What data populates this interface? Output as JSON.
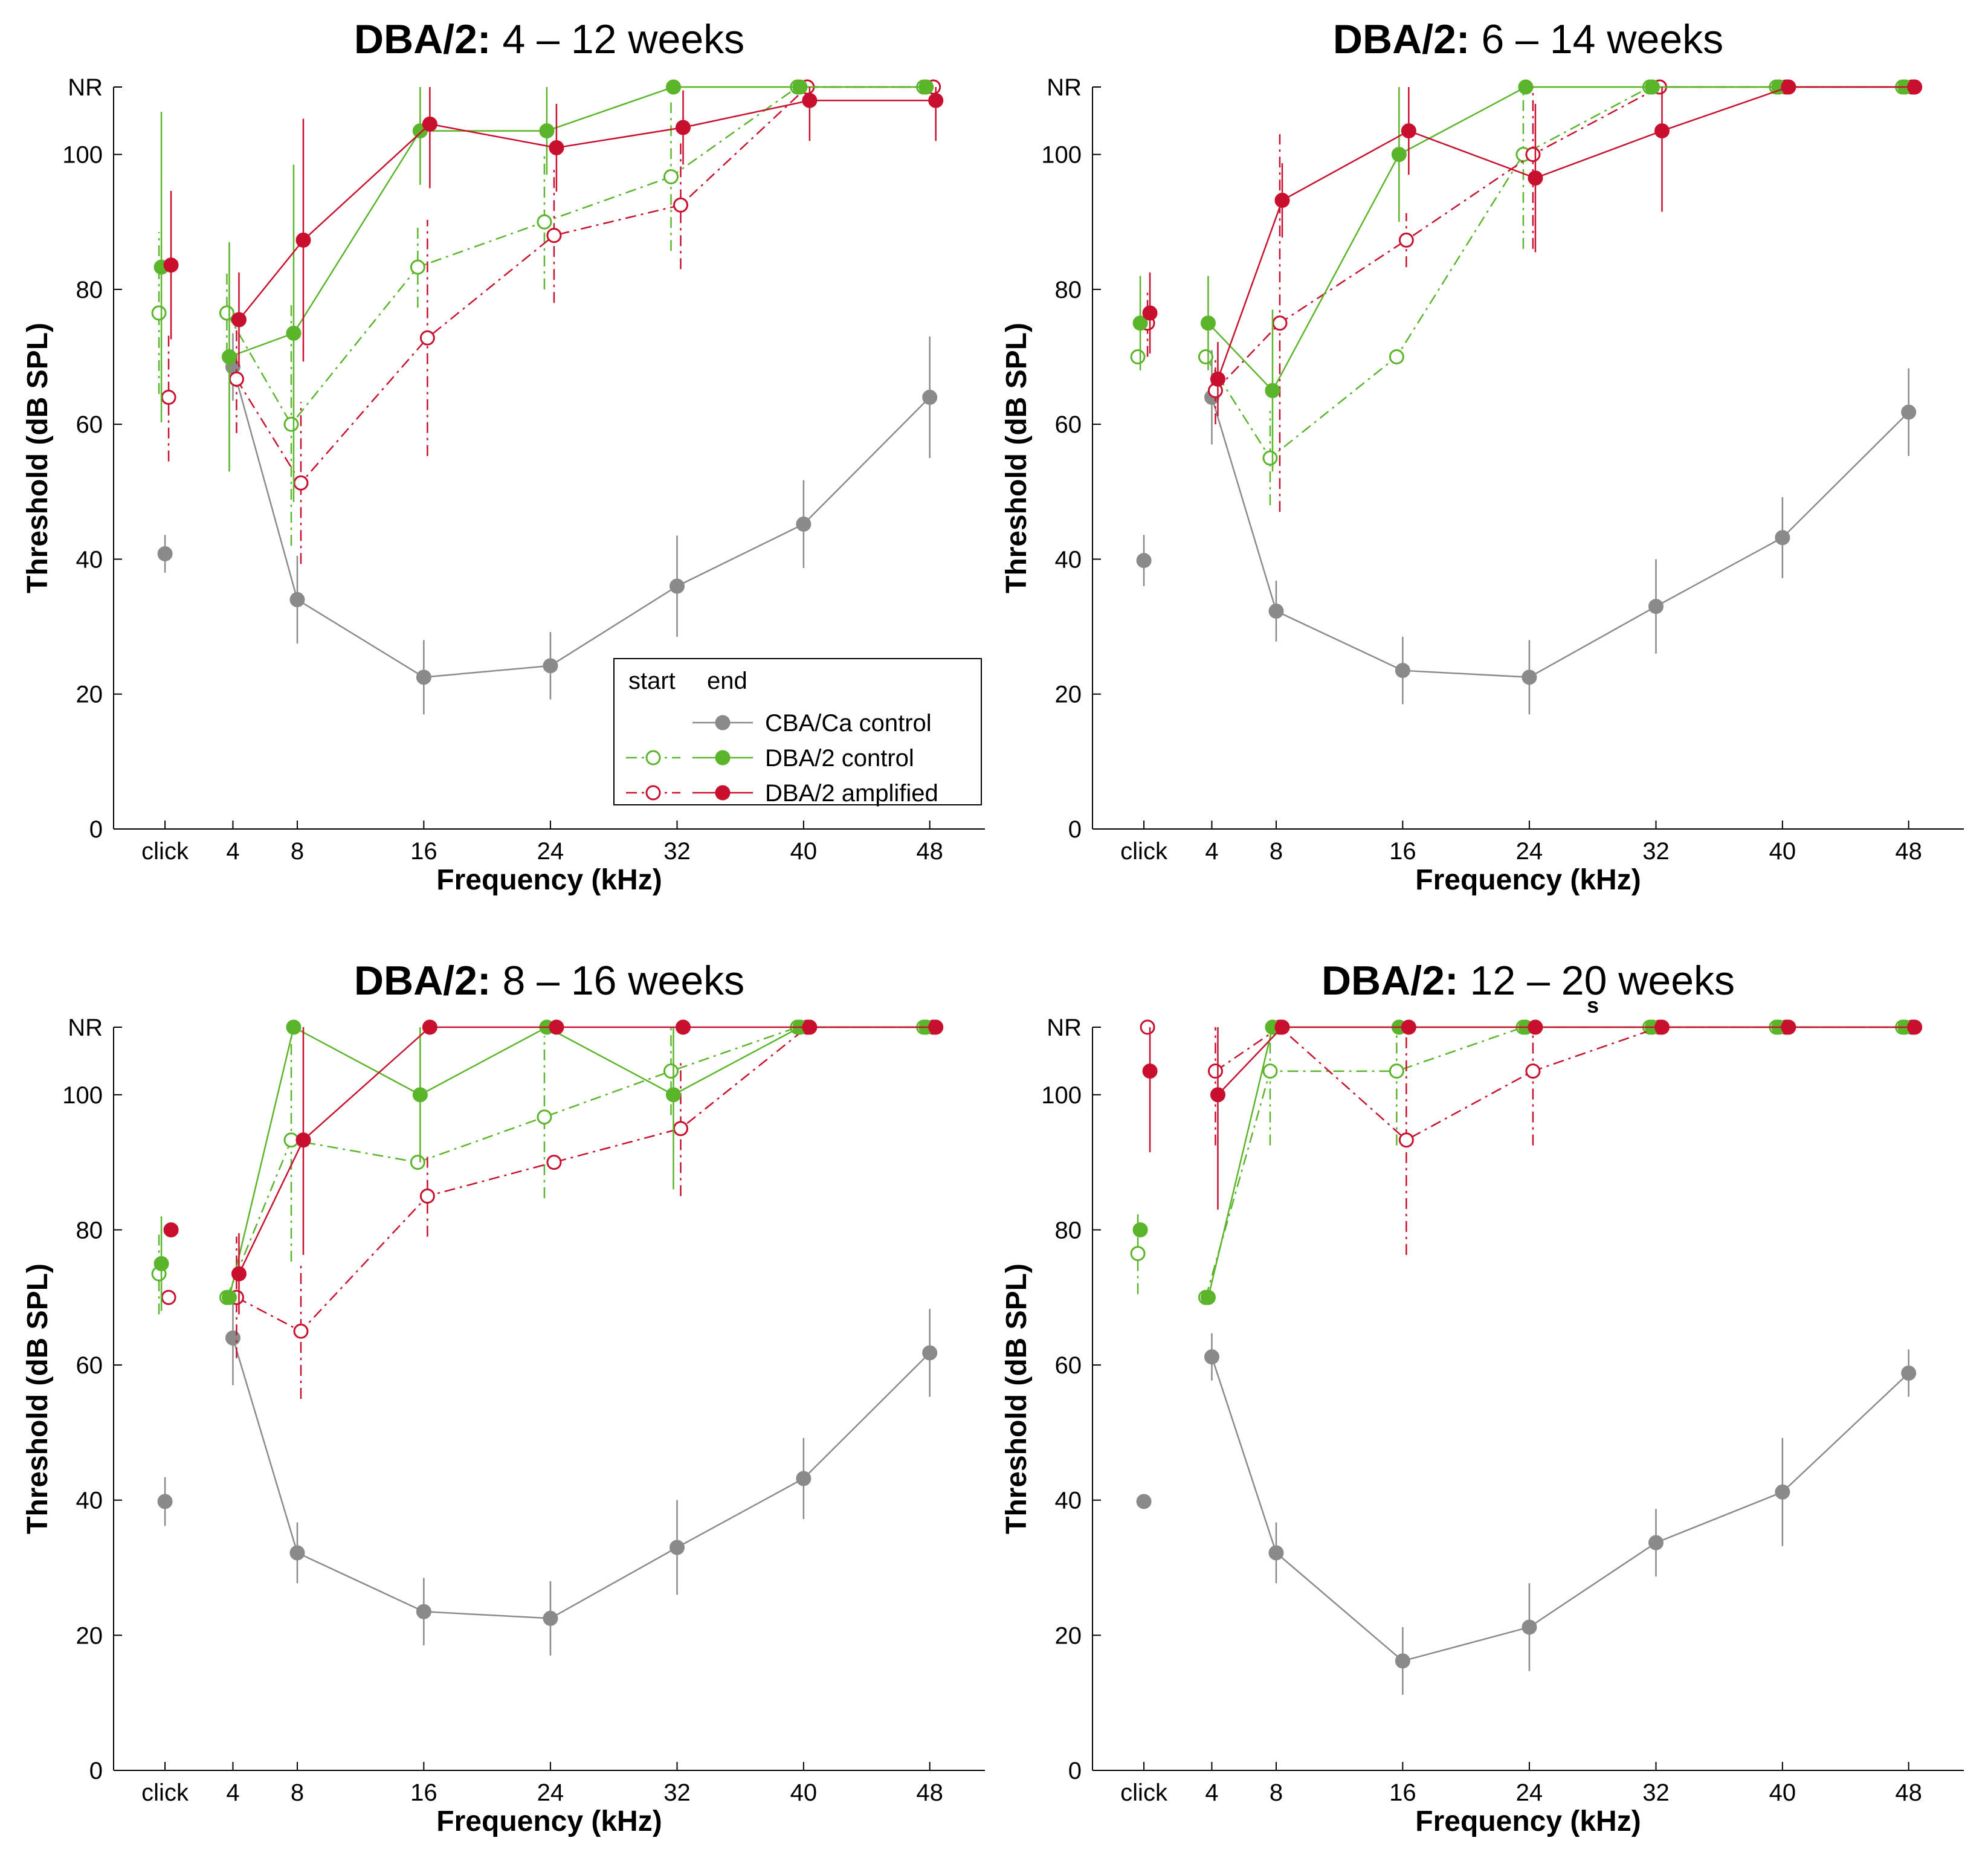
{
  "chart_data": [
    {
      "type": "line",
      "title_bold": "DBA/2:",
      "title_rest": "4 – 12 weeks",
      "xlabel": "Frequency (kHz)",
      "ylabel": "Threshold (dB SPL)",
      "x_tick_labels": [
        "click",
        "4",
        "8",
        "16",
        "24",
        "32",
        "40",
        "48"
      ],
      "y_tick_labels": [
        "0",
        "20",
        "40",
        "60",
        "80",
        "100",
        "NR"
      ],
      "ylim": [
        0,
        110
      ],
      "legend": {
        "header_start": "start",
        "header_end": "end",
        "entries": [
          "CBA/Ca control",
          "DBA/2 control",
          "DBA/2 amplified"
        ]
      },
      "series": [
        {
          "key": "cba_end",
          "x": [
            "click",
            "4",
            "8",
            "16",
            "24",
            "32",
            "40",
            "48"
          ],
          "y": [
            40.8,
            68.5,
            34,
            22.5,
            24.2,
            36,
            45.2,
            64
          ],
          "err": [
            2.8,
            5,
            6.5,
            5.5,
            5,
            7.5,
            6.5,
            9
          ]
        },
        {
          "key": "dba_ctrl_start",
          "x": [
            "click",
            "4",
            "8",
            "16",
            "24",
            "32",
            "40",
            "48"
          ],
          "y": [
            76.5,
            76.5,
            60,
            83.3,
            90,
            96.7,
            110,
            110
          ],
          "err": [
            12,
            6,
            18,
            6,
            10,
            11,
            0,
            0
          ]
        },
        {
          "key": "dba_ctrl_end",
          "x": [
            "click",
            "4",
            "8",
            "16",
            "24",
            "32",
            "40",
            "48"
          ],
          "y": [
            83.3,
            70,
            73.5,
            103.5,
            103.5,
            110,
            110,
            110
          ],
          "err": [
            23,
            17,
            25,
            8,
            6.5,
            0,
            0,
            0
          ]
        },
        {
          "key": "dba_amp_start",
          "x": [
            "click",
            "4",
            "8",
            "16",
            "24",
            "32",
            "40",
            "48"
          ],
          "y": [
            64,
            66.7,
            51.3,
            72.8,
            88,
            92.5,
            110,
            110
          ],
          "err": [
            9.5,
            8,
            12,
            17.5,
            10,
            9.5,
            0,
            0
          ]
        },
        {
          "key": "dba_amp_end",
          "x": [
            "click",
            "4",
            "8",
            "16",
            "24",
            "32",
            "40",
            "48"
          ],
          "y": [
            83.6,
            75.5,
            87.3,
            104.5,
            101,
            104,
            108,
            108
          ],
          "err": [
            11,
            7,
            18,
            9.5,
            6.5,
            5.5,
            6,
            6
          ]
        }
      ]
    },
    {
      "type": "line",
      "title_bold": "DBA/2:",
      "title_rest": "6 – 14 weeks",
      "xlabel": "Frequency (kHz)",
      "ylabel": "Threshold (dB SPL)",
      "x_tick_labels": [
        "click",
        "4",
        "8",
        "16",
        "24",
        "32",
        "40",
        "48"
      ],
      "y_tick_labels": [
        "0",
        "20",
        "40",
        "60",
        "80",
        "100",
        "NR"
      ],
      "ylim": [
        0,
        110
      ],
      "series": [
        {
          "key": "cba_end",
          "x": [
            "click",
            "4",
            "8",
            "16",
            "24",
            "32",
            "40",
            "48"
          ],
          "y": [
            39.8,
            64,
            32.3,
            23.5,
            22.5,
            33,
            43.2,
            61.8
          ],
          "err": [
            3.8,
            7,
            4.5,
            5,
            5.5,
            7,
            6,
            6.5
          ]
        },
        {
          "key": "dba_ctrl_start",
          "x": [
            "click",
            "4",
            "8",
            "16",
            "24",
            "32",
            "40",
            "48"
          ],
          "y": [
            70,
            70,
            55,
            70,
            100,
            110,
            110,
            110
          ],
          "err": [
            0,
            0,
            7,
            0,
            14,
            0,
            0,
            0
          ]
        },
        {
          "key": "dba_ctrl_end",
          "x": [
            "click",
            "4",
            "8",
            "16",
            "24",
            "32",
            "40",
            "48"
          ],
          "y": [
            75,
            75,
            65,
            100,
            110,
            110,
            110,
            110
          ],
          "err": [
            7,
            7,
            12,
            10,
            0,
            0,
            0,
            0
          ]
        },
        {
          "key": "dba_amp_start",
          "x": [
            "click",
            "4",
            "8",
            "16",
            "24",
            "32",
            "40",
            "48"
          ],
          "y": [
            75,
            65,
            75,
            87.3,
            100,
            110,
            110,
            110
          ],
          "err": [
            5,
            5,
            28,
            4,
            14,
            0,
            0,
            0
          ]
        },
        {
          "key": "dba_amp_end",
          "x": [
            "click",
            "4",
            "8",
            "16",
            "24",
            "32",
            "40",
            "48"
          ],
          "y": [
            76.5,
            66.7,
            93.2,
            103.5,
            96.5,
            103.5,
            110,
            110
          ],
          "err": [
            6,
            5.5,
            5.5,
            6.5,
            11,
            12,
            0,
            0
          ]
        }
      ]
    },
    {
      "type": "line",
      "title_bold": "DBA/2:",
      "title_rest": "8 – 16 weeks",
      "xlabel": "Frequency (kHz)",
      "ylabel": "Threshold (dB SPL)",
      "x_tick_labels": [
        "click",
        "4",
        "8",
        "16",
        "24",
        "32",
        "40",
        "48"
      ],
      "y_tick_labels": [
        "0",
        "20",
        "40",
        "60",
        "80",
        "100",
        "NR"
      ],
      "ylim": [
        0,
        110
      ],
      "series": [
        {
          "key": "cba_end",
          "x": [
            "click",
            "4",
            "8",
            "16",
            "24",
            "32",
            "40",
            "48"
          ],
          "y": [
            39.8,
            64,
            32.2,
            23.5,
            22.5,
            33,
            43.2,
            61.8
          ],
          "err": [
            3.6,
            7,
            4.5,
            5,
            5.5,
            7,
            6,
            6.5
          ]
        },
        {
          "key": "dba_ctrl_start",
          "x": [
            "click",
            "4",
            "8",
            "16",
            "24",
            "32",
            "40",
            "48"
          ],
          "y": [
            73.5,
            70,
            93.3,
            90,
            96.7,
            103.5,
            110,
            110
          ],
          "err": [
            6,
            0,
            18,
            0,
            12,
            6.5,
            0,
            0
          ]
        },
        {
          "key": "dba_ctrl_end",
          "x": [
            "click",
            "4",
            "8",
            "16",
            "24",
            "32",
            "40",
            "48"
          ],
          "y": [
            75,
            70,
            110,
            100,
            110,
            100,
            110,
            110
          ],
          "err": [
            7,
            0,
            0,
            10,
            0,
            14,
            0,
            0
          ]
        },
        {
          "key": "dba_amp_start",
          "x": [
            "click",
            "4",
            "8",
            "16",
            "24",
            "32",
            "40",
            "48"
          ],
          "y": [
            70,
            70,
            65,
            85,
            90,
            95,
            110,
            110
          ],
          "err": [
            0,
            9,
            10,
            6,
            0,
            10,
            0,
            0
          ]
        },
        {
          "key": "dba_amp_end",
          "x": [
            "click",
            "4",
            "8",
            "16",
            "24",
            "32",
            "40",
            "48"
          ],
          "y": [
            80,
            73.5,
            93.3,
            110,
            110,
            110,
            110,
            110
          ],
          "err": [
            0,
            6,
            17,
            0,
            0,
            0,
            0,
            0
          ]
        }
      ]
    },
    {
      "type": "line",
      "title_bold": "DBA/2:",
      "title_rest": "12 – 20 weeks",
      "xlabel": "Frequency (kHz)",
      "ylabel": "Threshold (dB SPL)",
      "x_tick_labels": [
        "click",
        "4",
        "8",
        "16",
        "24",
        "32",
        "40",
        "48"
      ],
      "y_tick_labels": [
        "0",
        "20",
        "40",
        "60",
        "80",
        "100",
        "NR"
      ],
      "ylim": [
        0,
        110
      ],
      "series": [
        {
          "key": "cba_end",
          "x": [
            "click",
            "4",
            "8",
            "16",
            "24",
            "32",
            "40",
            "48"
          ],
          "y": [
            39.8,
            61.2,
            32.2,
            16.2,
            21.2,
            33.7,
            41.2,
            58.8
          ],
          "err": [
            0,
            3.5,
            4.5,
            5,
            6.5,
            5,
            8,
            3.5
          ]
        },
        {
          "key": "dba_ctrl_start",
          "x": [
            "click",
            "4",
            "8",
            "16",
            "24",
            "32",
            "40",
            "48"
          ],
          "y": [
            76.5,
            70,
            103.5,
            103.5,
            110,
            110,
            110,
            110
          ],
          "err": [
            6,
            0,
            11,
            11,
            0,
            0,
            0,
            0
          ]
        },
        {
          "key": "dba_ctrl_end",
          "x": [
            "click",
            "4",
            "8",
            "16",
            "24",
            "32",
            "40",
            "48"
          ],
          "y": [
            80,
            70,
            110,
            110,
            110,
            110,
            110,
            110
          ],
          "err": [
            0,
            0,
            0,
            0,
            0,
            0,
            0,
            0
          ]
        },
        {
          "key": "dba_amp_start",
          "x": [
            "click",
            "4",
            "8",
            "16",
            "24",
            "32",
            "40",
            "48"
          ],
          "y": [
            110,
            103.5,
            110,
            93.3,
            103.5,
            110,
            110,
            110
          ],
          "err": [
            0,
            11,
            0,
            17,
            11,
            0,
            0,
            0
          ]
        },
        {
          "key": "dba_amp_end",
          "x": [
            "click",
            "4",
            "8",
            "16",
            "24",
            "32",
            "40",
            "48"
          ],
          "y": [
            103.5,
            100,
            110,
            110,
            110,
            110,
            110,
            110
          ],
          "err": [
            12,
            17,
            0,
            0,
            0,
            0,
            0,
            0
          ]
        }
      ]
    }
  ],
  "stray_glyph": "s",
  "colors": {
    "cba": "#8a8a8a",
    "dba_control": "#5ab52a",
    "dba_amplified": "#c8102e",
    "axis": "#000000"
  }
}
